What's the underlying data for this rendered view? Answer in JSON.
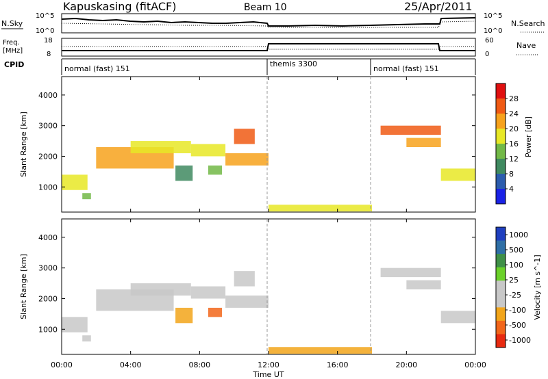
{
  "header": {
    "station": "Kapuskasing (fitACF)",
    "beam": "Beam 10",
    "date": "25/Apr/2011"
  },
  "sky_panel": {
    "left_label": "N.Sky",
    "right_label": "N.Search",
    "y_ticks_left": [
      "10^5",
      "10^0"
    ],
    "y_ticks_right": [
      "10^5",
      "10^0"
    ]
  },
  "freq_panel": {
    "left_label_1": "Freq.",
    "left_label_2": "[MHz]",
    "right_label": "Nave",
    "y_ticks_left": [
      "18",
      "8"
    ],
    "y_ticks_right": [
      "60",
      "0"
    ]
  },
  "cpid": {
    "label": "CPID",
    "segments": [
      {
        "name": "normal (fast) 151",
        "start": 0,
        "end": 12
      },
      {
        "name": "themis 3300",
        "start": 12,
        "end": 18
      },
      {
        "name": "normal (fast) 151",
        "start": 18,
        "end": 24
      }
    ]
  },
  "chart_data": [
    {
      "type": "heatmap",
      "title": "",
      "xlabel": "Time UT",
      "ylabel": "Slant Range [km]",
      "x_unit": "hours UT",
      "xlim": [
        0,
        24
      ],
      "ylim": [
        180,
        4600
      ],
      "x_ticks": [
        "00:00",
        "04:00",
        "08:00",
        "12:00",
        "16:00",
        "20:00",
        "00:00"
      ],
      "y_ticks": [
        "1000",
        "2000",
        "3000",
        "4000"
      ],
      "colorbar": {
        "label": "Power [dB]",
        "ticks": [
          "28",
          "24",
          "20",
          "16",
          "12",
          "8",
          "4"
        ],
        "colors": [
          "#e01010",
          "#f05a14",
          "#f7a21c",
          "#e8e826",
          "#72b947",
          "#3f8a60",
          "#2b5cad",
          "#1a22e6"
        ]
      },
      "regions": [
        {
          "t0": 0.0,
          "t1": 1.5,
          "r0": 900,
          "r1": 1400,
          "level": 3
        },
        {
          "t0": 1.2,
          "t1": 1.7,
          "r0": 600,
          "r1": 800,
          "level": 4
        },
        {
          "t0": 2.0,
          "t1": 6.5,
          "r0": 1600,
          "r1": 2300,
          "level": 2
        },
        {
          "t0": 4.0,
          "t1": 7.5,
          "r0": 2100,
          "r1": 2500,
          "level": 3
        },
        {
          "t0": 6.6,
          "t1": 7.6,
          "r0": 1200,
          "r1": 1700,
          "level": 5
        },
        {
          "t0": 7.5,
          "t1": 9.5,
          "r0": 2000,
          "r1": 2400,
          "level": 3
        },
        {
          "t0": 8.5,
          "t1": 9.3,
          "r0": 1400,
          "r1": 1700,
          "level": 4
        },
        {
          "t0": 9.5,
          "t1": 12.0,
          "r0": 1700,
          "r1": 2100,
          "level": 2
        },
        {
          "t0": 10.0,
          "t1": 11.2,
          "r0": 2400,
          "r1": 2900,
          "level": 1
        },
        {
          "t0": 12.0,
          "t1": 18.0,
          "r0": 200,
          "r1": 420,
          "level": 3
        },
        {
          "t0": 18.5,
          "t1": 22.0,
          "r0": 2700,
          "r1": 3000,
          "level": 1
        },
        {
          "t0": 20.0,
          "t1": 22.0,
          "r0": 2300,
          "r1": 2600,
          "level": 2
        },
        {
          "t0": 22.0,
          "t1": 24.0,
          "r0": 1200,
          "r1": 1600,
          "level": 3
        }
      ]
    },
    {
      "type": "heatmap",
      "title": "",
      "xlabel": "Time UT",
      "ylabel": "Slant Range [km]",
      "x_unit": "hours UT",
      "xlim": [
        0,
        24
      ],
      "ylim": [
        180,
        4600
      ],
      "x_ticks": [
        "00:00",
        "04:00",
        "08:00",
        "12:00",
        "16:00",
        "20:00",
        "00:00"
      ],
      "y_ticks": [
        "1000",
        "2000",
        "3000",
        "4000"
      ],
      "colorbar": {
        "label": "Velocity [m s^-1]",
        "ticks": [
          "1000",
          "500",
          "100",
          "25",
          "-25",
          "-100",
          "-500",
          "-1000"
        ],
        "colors": [
          "#1f3fbf",
          "#2f6fa6",
          "#3f9048",
          "#6bd12a",
          "#c8c8c8",
          "#c8c8c8",
          "#f2a51a",
          "#f2661a",
          "#e82a10"
        ]
      },
      "regions": [
        {
          "t0": 0.0,
          "t1": 1.5,
          "r0": 900,
          "r1": 1400,
          "level": 4
        },
        {
          "t0": 1.2,
          "t1": 1.7,
          "r0": 600,
          "r1": 800,
          "level": 4
        },
        {
          "t0": 2.0,
          "t1": 6.5,
          "r0": 1600,
          "r1": 2300,
          "level": 4
        },
        {
          "t0": 4.0,
          "t1": 7.5,
          "r0": 2100,
          "r1": 2500,
          "level": 4
        },
        {
          "t0": 6.6,
          "t1": 7.6,
          "r0": 1200,
          "r1": 1700,
          "level": 6
        },
        {
          "t0": 7.5,
          "t1": 9.5,
          "r0": 2000,
          "r1": 2400,
          "level": 4
        },
        {
          "t0": 8.5,
          "t1": 9.3,
          "r0": 1400,
          "r1": 1700,
          "level": 7
        },
        {
          "t0": 9.5,
          "t1": 12.0,
          "r0": 1700,
          "r1": 2100,
          "level": 4
        },
        {
          "t0": 10.0,
          "t1": 11.2,
          "r0": 2400,
          "r1": 2900,
          "level": 4
        },
        {
          "t0": 12.0,
          "t1": 18.0,
          "r0": 200,
          "r1": 420,
          "level": 6
        },
        {
          "t0": 18.5,
          "t1": 22.0,
          "r0": 2700,
          "r1": 3000,
          "level": 4
        },
        {
          "t0": 20.0,
          "t1": 22.0,
          "r0": 2300,
          "r1": 2600,
          "level": 4
        },
        {
          "t0": 22.0,
          "t1": 24.0,
          "r0": 1200,
          "r1": 1600,
          "level": 4
        }
      ]
    }
  ]
}
